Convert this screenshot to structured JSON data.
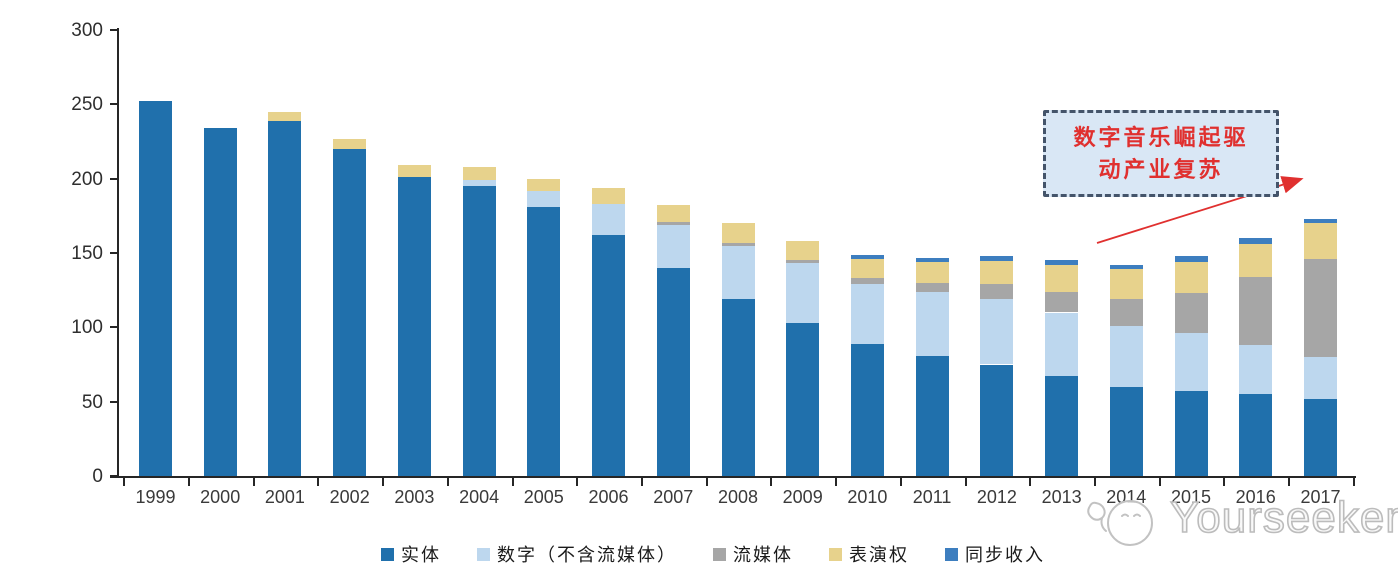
{
  "chart_data": {
    "type": "bar",
    "stacked": true,
    "title": "",
    "xlabel": "",
    "ylabel": "",
    "categories": [
      "1999",
      "2000",
      "2001",
      "2002",
      "2003",
      "2004",
      "2005",
      "2006",
      "2007",
      "2008",
      "2009",
      "2010",
      "2011",
      "2012",
      "2013",
      "2014",
      "2015",
      "2016",
      "2017"
    ],
    "series": [
      {
        "name": "实体",
        "color": "#2070AC",
        "values": [
          252,
          234,
          239,
          220,
          201,
          195,
          181,
          162,
          140,
          119,
          103,
          89,
          81,
          75,
          67,
          60,
          57,
          55,
          52
        ]
      },
      {
        "name": "数字（不含流媒体）",
        "color": "#BDD7EE",
        "values": [
          0,
          0,
          0,
          0,
          0,
          4,
          11,
          21,
          29,
          36,
          40,
          40,
          43,
          44,
          43,
          41,
          39,
          33,
          28
        ]
      },
      {
        "name": "流媒体",
        "color": "#A6A6A6",
        "values": [
          0,
          0,
          0,
          0,
          0,
          0,
          0,
          0,
          2,
          2,
          2,
          4,
          6,
          10,
          14,
          18,
          27,
          46,
          66
        ]
      },
      {
        "name": "表演权",
        "color": "#E7D28C",
        "values": [
          0,
          0,
          6,
          7,
          8,
          9,
          8,
          11,
          11,
          13,
          13,
          13,
          14,
          16,
          18,
          20,
          21,
          22,
          24
        ]
      },
      {
        "name": "同步收入",
        "color": "#3D7EBF",
        "values": [
          0,
          0,
          0,
          0,
          0,
          0,
          0,
          0,
          0,
          0,
          0,
          3,
          3,
          3,
          3,
          3,
          4,
          4,
          3
        ]
      }
    ],
    "ylim": [
      0,
      300
    ],
    "yticks": [
      0,
      50,
      100,
      150,
      200,
      250,
      300
    ],
    "grid": false,
    "legend_position": "bottom"
  },
  "annotation": {
    "line1": "数字音乐崛起驱",
    "line2": "动产业复苏",
    "text_color": "#E0302F",
    "box_fill": "#D9E7F5",
    "box_border": "#44546A",
    "arrow_color": "#E0302F"
  },
  "watermark": {
    "text": "Yourseeker",
    "logo_icon": "magnifier-hand-icon",
    "color": "#BCBCBC"
  }
}
